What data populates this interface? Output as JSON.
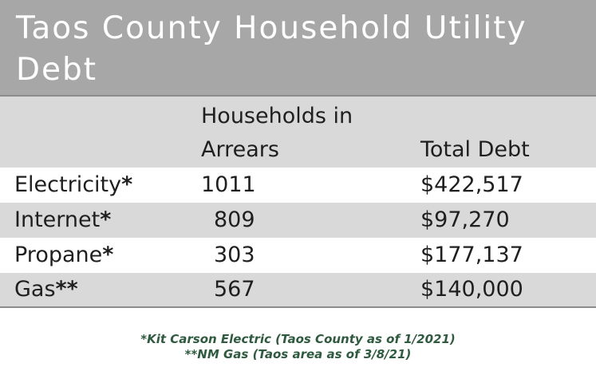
{
  "title": "Taos County Household Utility Debt",
  "headers": {
    "category": "",
    "households_line1": "Households in",
    "households_line2": "Arrears",
    "total_debt": "Total Debt"
  },
  "rows": [
    {
      "label": "Electricity",
      "mark": "*",
      "households": "1011",
      "debt": "$422,517"
    },
    {
      "label": "Internet",
      "mark": "*",
      "households": "809",
      "debt": "$97,270"
    },
    {
      "label": "Propane",
      "mark": "*",
      "households": "303",
      "debt": "$177,137"
    },
    {
      "label": "Gas",
      "mark": "**",
      "households": "567",
      "debt": "$140,000"
    }
  ],
  "footnotes": [
    "*Kit Carson Electric (Taos County as of 1/2021)",
    "**NM Gas (Taos area as of 3/8/21)"
  ],
  "colors": {
    "title_band": "#a7a7a7",
    "shaded_row": "#d9d9d9",
    "footnote_text": "#2f5a3f"
  }
}
